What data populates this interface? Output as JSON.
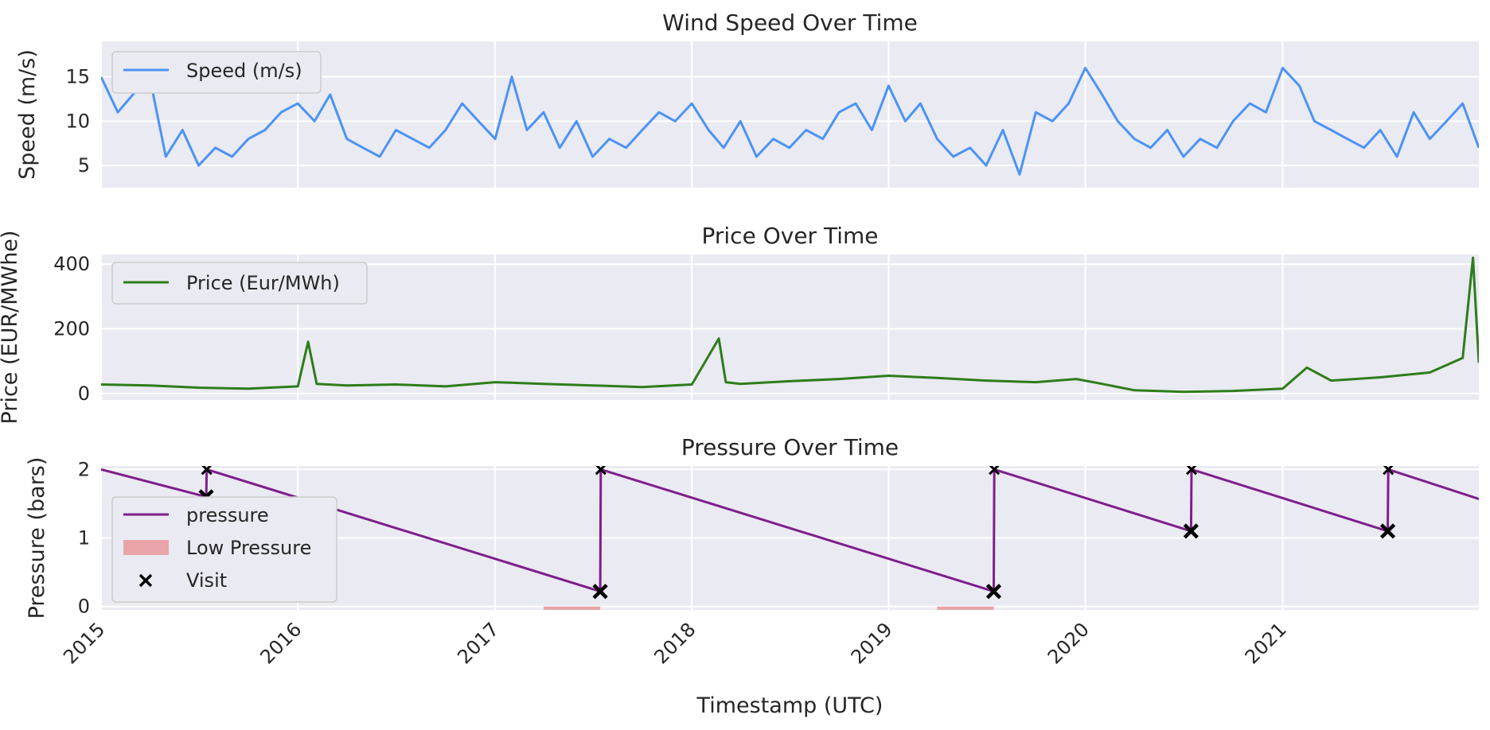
{
  "colors": {
    "background": "#EAEAF2",
    "grid": "#FFFFFF",
    "wind": "#4C93F4",
    "price": "#2E7D1A",
    "pressure": "#7E1E8C",
    "low_pressure": "#E8A4A8",
    "visit": "#000000"
  },
  "x_axis": {
    "label": "Timestamp (UTC)",
    "ticks": [
      "2015",
      "2016",
      "2017",
      "2018",
      "2019",
      "2020",
      "2021"
    ],
    "range": [
      "2015-01-01",
      "2021-12-31"
    ]
  },
  "chart_data": [
    {
      "type": "line",
      "title": "Wind Speed Over Time",
      "xlabel": "",
      "ylabel": "Speed (m/s)",
      "ylim": [
        2.5,
        19
      ],
      "yticks": [
        5,
        10,
        15
      ],
      "legend_position": "top-left",
      "grid": true,
      "series": [
        {
          "name": "Speed (m/s)",
          "x": [
            "2015-01-01",
            "2015-02-01",
            "2015-03-01",
            "2015-04-01",
            "2015-05-01",
            "2015-06-01",
            "2015-07-01",
            "2015-08-01",
            "2015-09-01",
            "2015-10-01",
            "2015-11-01",
            "2015-12-01",
            "2016-01-01",
            "2016-02-01",
            "2016-03-01",
            "2016-04-01",
            "2016-05-01",
            "2016-06-01",
            "2016-07-01",
            "2016-08-01",
            "2016-09-01",
            "2016-10-01",
            "2016-11-01",
            "2016-12-01",
            "2017-01-01",
            "2017-02-01",
            "2017-03-01",
            "2017-04-01",
            "2017-05-01",
            "2017-06-01",
            "2017-07-01",
            "2017-08-01",
            "2017-09-01",
            "2017-10-01",
            "2017-11-01",
            "2017-12-01",
            "2018-01-01",
            "2018-02-01",
            "2018-03-01",
            "2018-04-01",
            "2018-05-01",
            "2018-06-01",
            "2018-07-01",
            "2018-08-01",
            "2018-09-01",
            "2018-10-01",
            "2018-11-01",
            "2018-12-01",
            "2019-01-01",
            "2019-02-01",
            "2019-03-01",
            "2019-04-01",
            "2019-05-01",
            "2019-06-01",
            "2019-07-01",
            "2019-08-01",
            "2019-09-01",
            "2019-10-01",
            "2019-11-01",
            "2019-12-01",
            "2020-01-01",
            "2020-02-01",
            "2020-03-01",
            "2020-04-01",
            "2020-05-01",
            "2020-06-01",
            "2020-07-01",
            "2020-08-01",
            "2020-09-01",
            "2020-10-01",
            "2020-11-01",
            "2020-12-01",
            "2021-01-01",
            "2021-02-01",
            "2021-03-01",
            "2021-04-01",
            "2021-05-01",
            "2021-06-01",
            "2021-07-01",
            "2021-08-01",
            "2021-09-01",
            "2021-10-01",
            "2021-11-01",
            "2021-12-01",
            "2021-12-31"
          ],
          "values": [
            15,
            11,
            13,
            15,
            6,
            9,
            5,
            7,
            6,
            8,
            9,
            11,
            12,
            10,
            13,
            8,
            7,
            6,
            9,
            8,
            7,
            9,
            12,
            10,
            8,
            15,
            9,
            11,
            7,
            10,
            6,
            8,
            7,
            9,
            11,
            10,
            12,
            9,
            7,
            10,
            6,
            8,
            7,
            9,
            8,
            11,
            12,
            9,
            14,
            10,
            12,
            8,
            6,
            7,
            5,
            9,
            4,
            11,
            10,
            12,
            16,
            13,
            10,
            8,
            7,
            9,
            6,
            8,
            7,
            10,
            12,
            11,
            16,
            14,
            10,
            9,
            8,
            7,
            9,
            6,
            11,
            8,
            10,
            12,
            7
          ]
        }
      ]
    },
    {
      "type": "line",
      "title": "Price Over Time",
      "xlabel": "",
      "ylabel": "Price (EUR/MWhe)",
      "ylim": [
        -20,
        430
      ],
      "yticks": [
        0,
        200,
        400
      ],
      "legend_position": "top-left",
      "grid": true,
      "series": [
        {
          "name": "Price (Eur/MWh)",
          "x": [
            "2015-01-01",
            "2015-04-01",
            "2015-07-01",
            "2015-10-01",
            "2016-01-01",
            "2016-01-20",
            "2016-02-05",
            "2016-04-01",
            "2016-07-01",
            "2016-10-01",
            "2017-01-01",
            "2017-04-01",
            "2017-07-01",
            "2017-10-01",
            "2018-01-01",
            "2018-02-20",
            "2018-03-05",
            "2018-04-01",
            "2018-07-01",
            "2018-10-01",
            "2019-01-01",
            "2019-04-01",
            "2019-07-01",
            "2019-10-01",
            "2019-12-15",
            "2020-02-01",
            "2020-04-01",
            "2020-07-01",
            "2020-10-01",
            "2021-01-01",
            "2021-02-15",
            "2021-04-01",
            "2021-07-01",
            "2021-10-01",
            "2021-12-01",
            "2021-12-20",
            "2021-12-31"
          ],
          "values": [
            28,
            25,
            18,
            15,
            22,
            160,
            30,
            25,
            28,
            22,
            35,
            30,
            25,
            20,
            28,
            170,
            35,
            30,
            38,
            45,
            55,
            48,
            40,
            35,
            45,
            30,
            10,
            5,
            8,
            15,
            80,
            40,
            50,
            65,
            110,
            420,
            95
          ]
        }
      ]
    },
    {
      "type": "line",
      "title": "Pressure Over Time",
      "xlabel": "Timestamp (UTC)",
      "ylabel": "Pressure (bars)",
      "ylim": [
        -0.05,
        2.05
      ],
      "yticks": [
        0,
        1,
        2
      ],
      "legend_position": "bottom-left",
      "grid": true,
      "series": [
        {
          "name": "pressure",
          "x": [
            "2015-01-01",
            "2015-07-15",
            "2015-07-16",
            "2017-07-15",
            "2017-07-16",
            "2019-07-15",
            "2019-07-16",
            "2020-07-15",
            "2020-07-16",
            "2021-07-15",
            "2021-07-16",
            "2021-12-31"
          ],
          "values": [
            2.0,
            1.6,
            2.0,
            0.22,
            2.0,
            0.22,
            2.0,
            1.1,
            2.0,
            1.1,
            2.0,
            1.57
          ]
        }
      ],
      "low_pressure": {
        "name": "Low Pressure",
        "spans": [
          [
            "2017-04-01",
            "2017-07-15"
          ],
          [
            "2019-04-01",
            "2019-07-15"
          ]
        ]
      },
      "visits": {
        "name": "Visit",
        "x": [
          "2015-07-15",
          "2015-07-16",
          "2017-07-15",
          "2017-07-16",
          "2019-07-15",
          "2019-07-16",
          "2020-07-15",
          "2020-07-16",
          "2021-07-15",
          "2021-07-16"
        ],
        "values": [
          1.6,
          2.0,
          0.22,
          2.0,
          0.22,
          2.0,
          1.1,
          2.0,
          1.1,
          2.0
        ]
      }
    }
  ]
}
